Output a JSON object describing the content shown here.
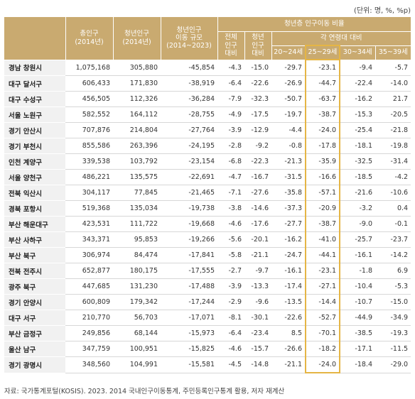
{
  "unit_note": "(단위: 명, %, %p)",
  "headers": {
    "total_pop": "총인구\n(2014년)",
    "youth_pop": "청년인구\n(2014년)",
    "youth_move": "청년인구\n이동 규모\n(2014~2023)",
    "group": "청년층 인구이동 비율",
    "total_ratio": "전체\n인구\n대비",
    "youth_ratio": "청년\n인구\n대비",
    "age_group": "각 연령대 대비",
    "ages": [
      "20~24세",
      "25~29세",
      "30~34세",
      "35~39세"
    ]
  },
  "rows": [
    {
      "region": "경남 창원시",
      "values": [
        "1,075,168",
        "305,880",
        "-45,854",
        "-4.3",
        "-15.0",
        "-29.7",
        "-23.1",
        "-9.4",
        "-5.7"
      ]
    },
    {
      "region": "대구 달서구",
      "values": [
        "606,433",
        "171,830",
        "-38,919",
        "-6.4",
        "-22.6",
        "-26.9",
        "-44.7",
        "-22.4",
        "-14.0"
      ]
    },
    {
      "region": "대구 수성구",
      "values": [
        "456,505",
        "112,326",
        "-36,284",
        "-7.9",
        "-32.3",
        "-50.7",
        "-63.7",
        "-16.2",
        "21.7"
      ]
    },
    {
      "region": "서울 노원구",
      "values": [
        "582,552",
        "164,112",
        "-28,755",
        "-4.9",
        "-17.5",
        "-19.7",
        "-38.7",
        "-15.3",
        "-20.5"
      ]
    },
    {
      "region": "경기 안산시",
      "values": [
        "707,876",
        "214,804",
        "-27,764",
        "-3.9",
        "-12.9",
        "-4.4",
        "-24.0",
        "-25.4",
        "-21.8"
      ]
    },
    {
      "region": "경기 부천시",
      "values": [
        "855,586",
        "263,396",
        "-24,195",
        "-2.8",
        "-9.2",
        "-0.8",
        "-17.8",
        "-18.1",
        "-19.8"
      ]
    },
    {
      "region": "인천 계양구",
      "values": [
        "339,538",
        "103,792",
        "-23,154",
        "-6.8",
        "-22.3",
        "-21.3",
        "-35.9",
        "-32.5",
        "-31.4"
      ]
    },
    {
      "region": "서울 양천구",
      "values": [
        "486,221",
        "135,575",
        "-22,691",
        "-4.7",
        "-16.7",
        "-31.5",
        "-16.6",
        "-18.5",
        "-4.2"
      ]
    },
    {
      "region": "전북 익산시",
      "values": [
        "304,117",
        "77,845",
        "-21,465",
        "-7.1",
        "-27.6",
        "-35.8",
        "-57.1",
        "-21.6",
        "-10.6"
      ]
    },
    {
      "region": "경북 포항시",
      "values": [
        "519,368",
        "135,034",
        "-19,738",
        "-3.8",
        "-14.6",
        "-37.3",
        "-20.9",
        "-3.2",
        "0.4"
      ]
    },
    {
      "region": "부산 해운대구",
      "values": [
        "423,531",
        "111,722",
        "-19,668",
        "-4.6",
        "-17.6",
        "-27.7",
        "-38.7",
        "-9.0",
        "-0.1"
      ]
    },
    {
      "region": "부산 사하구",
      "values": [
        "343,371",
        "95,853",
        "-19,266",
        "-5.6",
        "-20.1",
        "-16.2",
        "-41.0",
        "-25.7",
        "-23.7"
      ]
    },
    {
      "region": "부산 북구",
      "values": [
        "306,974",
        "84,474",
        "-17,841",
        "-5.8",
        "-21.1",
        "-24.7",
        "-44.1",
        "-16.1",
        "-14.2"
      ]
    },
    {
      "region": "전북 전주시",
      "values": [
        "652,877",
        "180,175",
        "-17,555",
        "-2.7",
        "-9.7",
        "-16.1",
        "-23.1",
        "-1.8",
        "6.9"
      ]
    },
    {
      "region": "광주 북구",
      "values": [
        "447,685",
        "131,230",
        "-17,488",
        "-3.9",
        "-13.3",
        "-17.4",
        "-27.1",
        "-10.4",
        "-5.3"
      ]
    },
    {
      "region": "경기 안양시",
      "values": [
        "600,809",
        "179,342",
        "-17,244",
        "-2.9",
        "-9.6",
        "-13.5",
        "-14.4",
        "-10.7",
        "-15.0"
      ]
    },
    {
      "region": "대구 서구",
      "values": [
        "210,770",
        "56,703",
        "-17,071",
        "-8.1",
        "-30.1",
        "-22.6",
        "-52.7",
        "-44.9",
        "-34.9"
      ]
    },
    {
      "region": "부산 금정구",
      "values": [
        "249,856",
        "68,144",
        "-15,973",
        "-6.4",
        "-23.4",
        "8.5",
        "-70.1",
        "-38.5",
        "-19.3"
      ]
    },
    {
      "region": "울산 남구",
      "values": [
        "347,759",
        "100,951",
        "-15,825",
        "-4.6",
        "-15.7",
        "-26.6",
        "-18.2",
        "-17.1",
        "-11.5"
      ]
    },
    {
      "region": "경기 광명시",
      "values": [
        "348,560",
        "104,991",
        "-15,581",
        "-4.5",
        "-14.8",
        "-21.1",
        "-24.0",
        "-18.4",
        "-29.0"
      ]
    }
  ],
  "source": "자료: 국가통계포털(KOSIS). 2023. 2014 국내인구이동통계, 주민등록인구통계 활용, 저자 재계산",
  "colors": {
    "header_bg": "#c9aa70",
    "highlight_border": "#e5b545",
    "region_bg": "#f1f1f1"
  }
}
